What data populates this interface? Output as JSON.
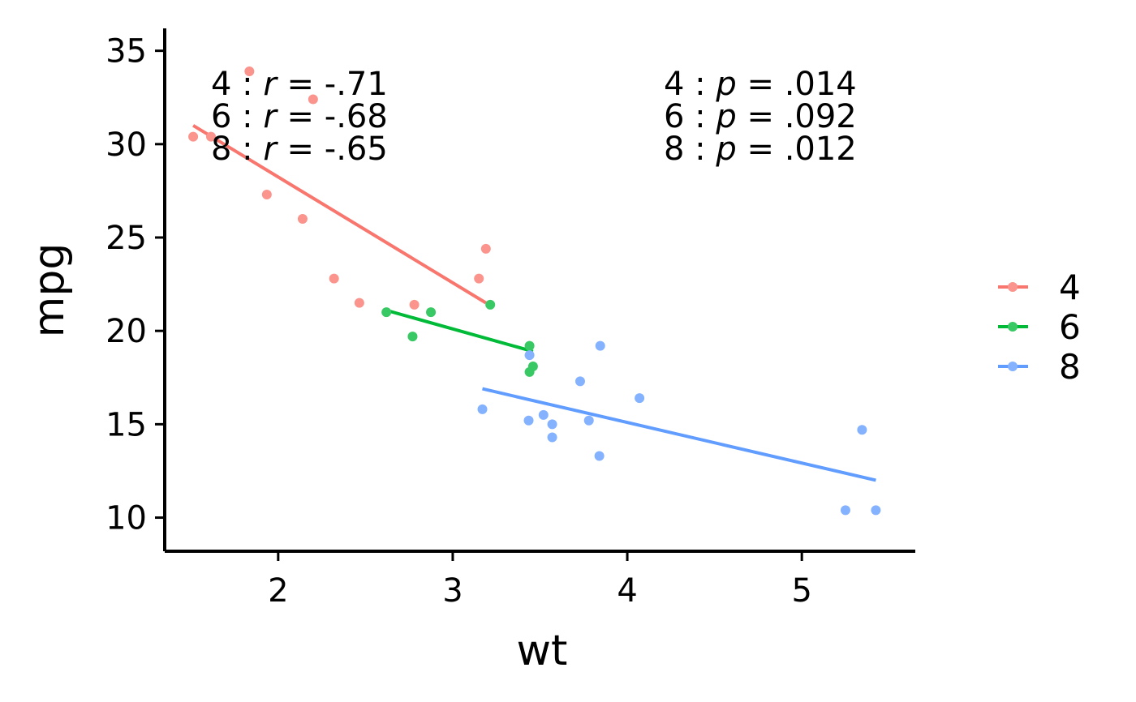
{
  "chart_data": {
    "type": "scatter",
    "xlabel": "wt",
    "ylabel": "mpg",
    "xlim": [
      1.35,
      5.65
    ],
    "ylim": [
      8.2,
      36.2
    ],
    "xticks": [
      2,
      3,
      4,
      5
    ],
    "yticks": [
      10,
      15,
      20,
      25,
      30,
      35
    ],
    "grid": false,
    "legend_position": "right",
    "series": [
      {
        "name": "4",
        "color": "#F8766D",
        "x": [
          2.32,
          2.2,
          3.19,
          3.15,
          1.615,
          1.835,
          2.465,
          1.935,
          2.14,
          1.513,
          2.78
        ],
        "y": [
          22.8,
          32.4,
          24.4,
          22.8,
          30.4,
          33.9,
          21.5,
          27.3,
          26.0,
          30.4,
          21.4
        ],
        "fit": [
          [
            1.513,
            31.0
          ],
          [
            3.19,
            21.5
          ]
        ]
      },
      {
        "name": "6",
        "color": "#00BA38",
        "x": [
          2.62,
          2.875,
          3.215,
          3.44,
          3.46,
          2.77,
          3.44
        ],
        "y": [
          21.0,
          21.0,
          21.4,
          19.2,
          18.1,
          19.7,
          17.8
        ],
        "fit": [
          [
            2.62,
            21.1
          ],
          [
            3.46,
            18.9
          ]
        ]
      },
      {
        "name": "8",
        "color": "#619CFF",
        "x": [
          3.44,
          3.57,
          3.73,
          3.78,
          5.25,
          5.424,
          5.345,
          3.52,
          3.435,
          3.84,
          3.845,
          3.17,
          3.57,
          4.07
        ],
        "y": [
          18.7,
          14.3,
          17.3,
          15.2,
          10.4,
          10.4,
          14.7,
          15.5,
          15.2,
          13.3,
          19.2,
          15.8,
          15.0,
          16.4
        ],
        "fit": [
          [
            3.17,
            16.9
          ],
          [
            5.424,
            12.0
          ]
        ]
      }
    ],
    "annotations": {
      "r": [
        {
          "group": "4",
          "symbol": "r",
          "value": "-.71"
        },
        {
          "group": "6",
          "symbol": "r",
          "value": "-.68"
        },
        {
          "group": "8",
          "symbol": "r",
          "value": "-.65"
        }
      ],
      "p": [
        {
          "group": "4",
          "symbol": "p",
          "value": ".014"
        },
        {
          "group": "6",
          "symbol": "p",
          "value": ".092"
        },
        {
          "group": "8",
          "symbol": "p",
          "value": ".012"
        }
      ]
    }
  }
}
